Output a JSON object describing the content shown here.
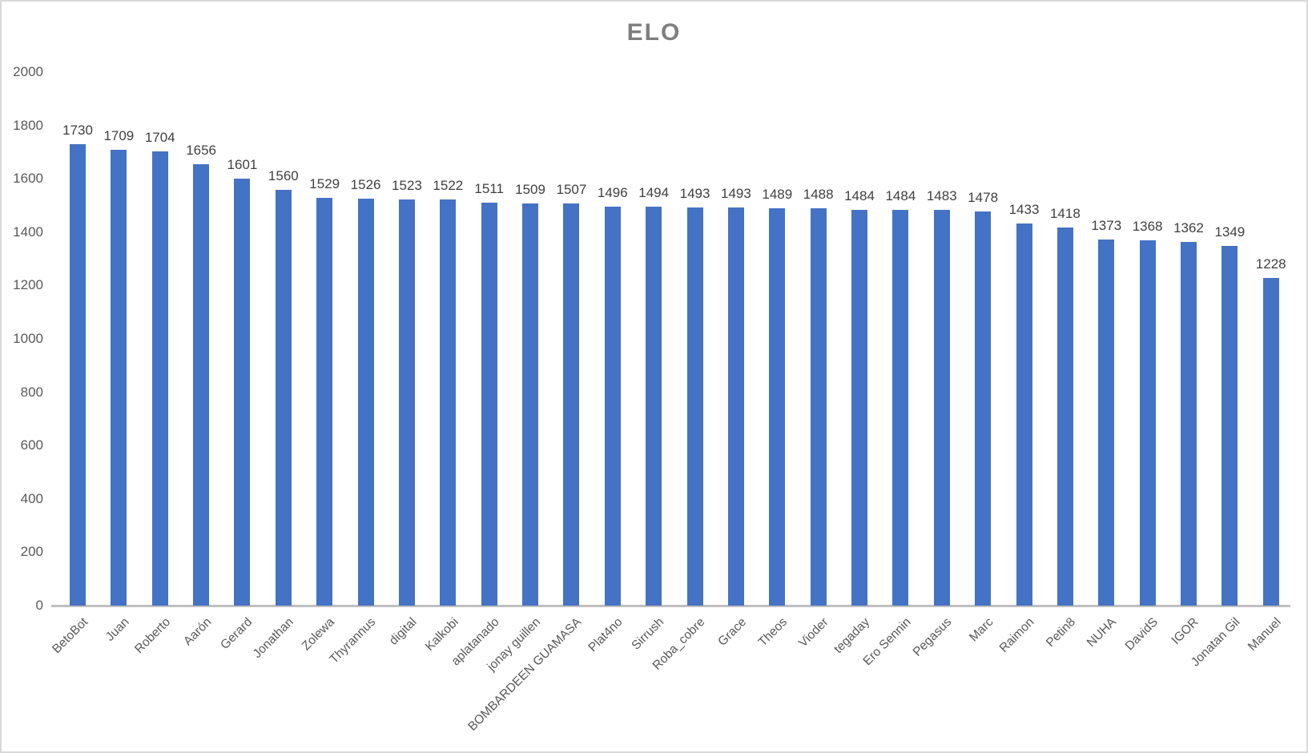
{
  "window": {
    "background": "#ffffff",
    "border_color": "#d9d9d9"
  },
  "chart_data": {
    "type": "bar",
    "title": "ELO",
    "categories": [
      "BetoBot",
      "Juan",
      "Roberto",
      "Aarón",
      "Gerard",
      "Jonathan",
      "Zolewa",
      "Thyrannus",
      "digital",
      "Kalkobi",
      "aplatanado",
      "jonay guillen",
      "BOMBARDEEN GUAMASA",
      "Plat4no",
      "Sirrush",
      "Roba_cobre",
      "Grace",
      "Theos",
      "Vioder",
      "tegaday",
      "Ero Sennin",
      "Pegasus",
      "Marc",
      "Raimon",
      "Petin8",
      "NUHA",
      "DavidS",
      "IGOR",
      "Jonatan Gil",
      "Manuel"
    ],
    "values": [
      1730,
      1709,
      1704,
      1656,
      1601,
      1560,
      1529,
      1526,
      1523,
      1522,
      1511,
      1509,
      1507,
      1496,
      1494,
      1493,
      1493,
      1489,
      1488,
      1484,
      1484,
      1483,
      1478,
      1433,
      1418,
      1373,
      1368,
      1362,
      1349,
      1228
    ],
    "xlabel": "",
    "ylabel": "",
    "ylim": [
      0,
      2000
    ],
    "ytick_step": 200,
    "yticks": [
      0,
      200,
      400,
      600,
      800,
      1000,
      1200,
      1400,
      1600,
      1800,
      2000
    ],
    "grid": false,
    "legend": false,
    "value_labels": true,
    "x_label_rotation_deg": 45,
    "colors": {
      "bar": "#4472c4",
      "title_text": "#7f7f7f",
      "axis_text": "#595959",
      "value_label_text": "#404040",
      "axis_line": "#bfbfbf",
      "border": "#d9d9d9"
    }
  }
}
